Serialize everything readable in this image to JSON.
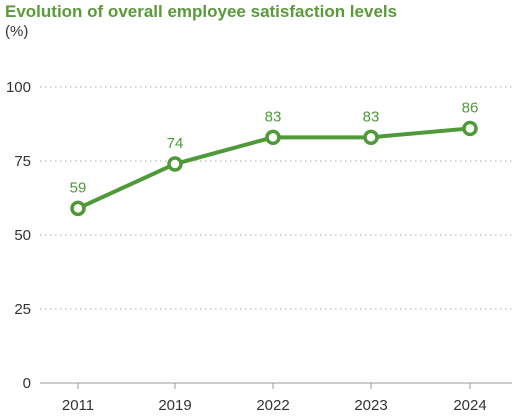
{
  "chart_data": {
    "type": "line",
    "title": "Evolution of overall employee satisfaction levels",
    "unit_label": "(%)",
    "xlabel": "",
    "ylabel": "",
    "categories": [
      "2011",
      "2019",
      "2022",
      "2023",
      "2024"
    ],
    "series": [
      {
        "values": [
          59,
          74,
          83,
          83,
          86
        ]
      }
    ],
    "data_labels": [
      "59",
      "74",
      "83",
      "83",
      "86"
    ],
    "ylim": [
      0,
      100
    ],
    "yticks": [
      0,
      25,
      50,
      75,
      100
    ],
    "ytick_labels": [
      "0",
      "25",
      "50",
      "75",
      "100"
    ],
    "grid": "dotted horizontal",
    "legend": "none",
    "colors": {
      "line": "#4f9a38",
      "title": "#5a9a3a",
      "marker_fill": "#ffffff",
      "grid": "#bbbbbb",
      "axis": "#999999"
    }
  }
}
